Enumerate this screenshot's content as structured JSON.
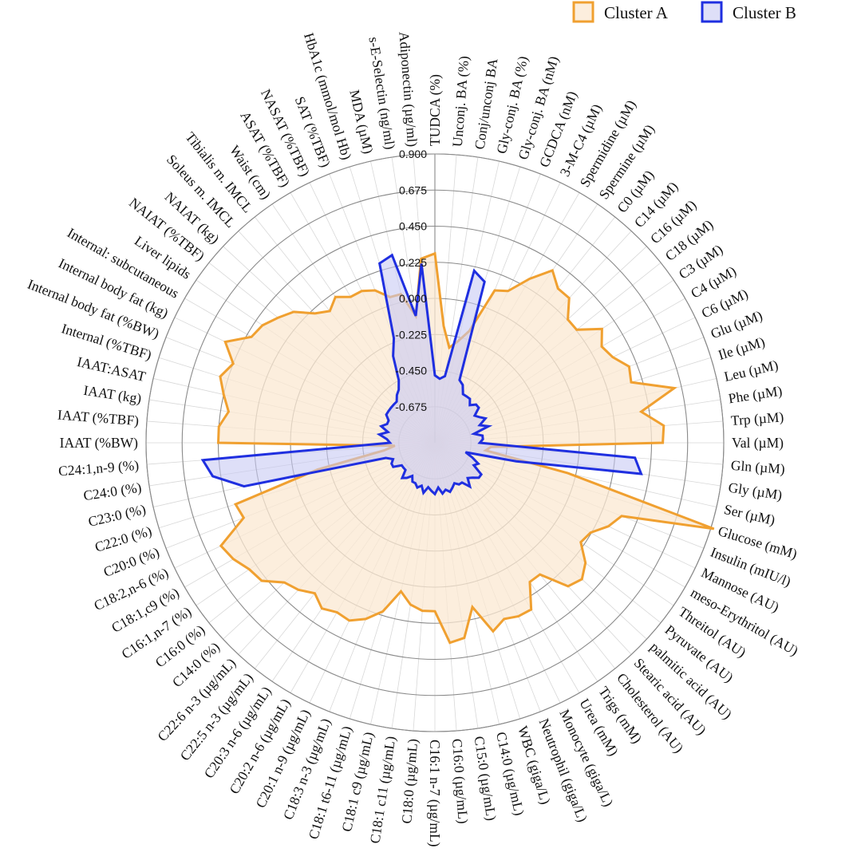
{
  "chart_data": {
    "type": "radar",
    "title": "",
    "range": [
      -0.9,
      0.9
    ],
    "ticks": [
      "0.900",
      "0.675",
      "0.450",
      "0.225",
      "0.000",
      "-0.225",
      "-0.450",
      "-0.675"
    ],
    "tick_values": [
      0.9,
      0.675,
      0.45,
      0.225,
      0.0,
      -0.225,
      -0.45,
      -0.675
    ],
    "grid": true,
    "legend_position": "top-right",
    "categories": [
      "TUDCA (%)",
      "Unconj. BA (%)",
      "Conj/unconj BA",
      "Gly-conj. BA (%)",
      "Gly-conj. BA (nM)",
      "GCDCA (nM)",
      "3-M-C4 (µM)",
      "Spermidine (µM)",
      "Spermine (µM)",
      "C0 (µM)",
      "C14 (µM)",
      "C16 (µM)",
      "C18 (µM)",
      "C3 (µM)",
      "C4 (µM)",
      "C6 (µM)",
      "Glu (µM)",
      "Ile (µM)",
      "Leu (µM)",
      "Phe (µM)",
      "Trp (µM)",
      "Val (µM)",
      "Gln (µM)",
      "Gly (µM)",
      "Ser (µM)",
      "Glucose (mM)",
      "Insulin (mIU/l)",
      "Mannose (AU)",
      "meso-Erythritol (AU)",
      "Threitol (AU)",
      "Pyruvate (AU)",
      "palmitic acid (AU)",
      "Stearic acid (AU)",
      "Cholesterol (AU)",
      "Trigs (mM)",
      "Urea (mM)",
      "Monocyte (giga/L)",
      "Neutrophil (giga/L)",
      "WBC (giga/L)",
      "C14:0 (µg/mL)",
      "C15:0 (µg/mL)",
      "C16:0 (µg/mL)",
      "C16:1 n-7 (µg/mL)",
      "C18:0 (µg/mL)",
      "C18:1 c11 (µg/mL)",
      "C18:1 c9 (µg/mL)",
      "C18:1 t6-11 (µg/mL)",
      "C18:3 n-3 (µg/mL)",
      "C20:1 n-9 (µg/mL)",
      "C20:2 n-6 (µg/mL)",
      "C20:3 n-6 (µg/mL)",
      "C22:5 n-3 (µg/mL)",
      "C22:6 n-3 (µg/mL)",
      "C14:0 (%)",
      "C16:0 (%)",
      "C16:1,n-7 (%)",
      "C18:1,c9 (%)",
      "C18:2,n-6 (%)",
      "C20:0 (%)",
      "C22:0 (%)",
      "C23:0 (%)",
      "C24:0 (%)",
      "C24:1,n-9 (%)",
      "IAAT (%BW)",
      "IAAT (%TBF)",
      "IAAT (kg)",
      "IAAT:ASAT",
      "Internal (%TBF)",
      "Internal body fat (%BW)",
      "Internal body fat (kg)",
      "Internal: subcutaneous",
      "Liver lipids",
      "NAIAT (%TBF)",
      "NAIAT (kg)",
      "Soleus m. IMCL",
      "Tibialis m. IMCL",
      "Waist (cm)",
      "ASAT (%TBF)",
      "NASAT (%TBF)",
      "SAT (%TBF)",
      "HbA1c (mmol/mol Hb)",
      "MDA (µM)",
      "s-E-Selectin (ng/ml)",
      "Adiponectin (µg/ml)"
    ],
    "series": [
      {
        "name": "Cluster A",
        "color": "#f0a030",
        "fill": "#fbe8d2",
        "values": [
          0.28,
          -0.17,
          -0.3,
          -0.25,
          -0.17,
          0.12,
          0.15,
          0.28,
          0.4,
          0.33,
          0.33,
          0.23,
          0.23,
          0.36,
          0.3,
          0.33,
          0.4,
          0.38,
          0.63,
          0.4,
          0.53,
          0.52,
          -0.55,
          -0.58,
          -0.05,
          0.92,
          0.35,
          0.3,
          0.22,
          0.2,
          0.3,
          0.35,
          0.32,
          0.15,
          0.15,
          0.3,
          0.3,
          0.28,
          0.33,
          0.15,
          0.33,
          0.35,
          0.15,
          0.15,
          0.12,
          0.05,
          0.2,
          0.28,
          0.33,
          0.32,
          0.35,
          0.3,
          0.35,
          0.38,
          0.48,
          0.5,
          0.55,
          0.58,
          0.38,
          0.4,
          -0.15,
          -0.58,
          -0.65,
          0.45,
          0.45,
          0.4,
          0.45,
          0.5,
          0.45,
          0.55,
          0.42,
          0.4,
          0.35,
          0.3,
          0.2,
          0.15,
          0.2,
          0.15,
          0.15,
          0.12,
          0.05,
          0.05,
          -0.1,
          0.25
        ]
      },
      {
        "name": "Cluster B",
        "color": "#1f2fe0",
        "fill": "#c8c9f3",
        "values": [
          -0.48,
          -0.5,
          -0.48,
          0.2,
          0.15,
          -0.48,
          -0.5,
          -0.55,
          -0.55,
          -0.55,
          -0.58,
          -0.55,
          -0.55,
          -0.6,
          -0.58,
          -0.55,
          -0.6,
          -0.55,
          -0.65,
          -0.6,
          -0.6,
          -0.62,
          0.35,
          0.4,
          -0.38,
          -0.7,
          -0.65,
          -0.6,
          -0.62,
          -0.55,
          -0.55,
          -0.58,
          -0.6,
          -0.55,
          -0.6,
          -0.6,
          -0.62,
          -0.6,
          -0.58,
          -0.6,
          -0.58,
          -0.62,
          -0.58,
          -0.6,
          -0.62,
          -0.58,
          -0.62,
          -0.6,
          -0.62,
          -0.62,
          -0.65,
          -0.62,
          -0.6,
          -0.65,
          -0.65,
          -0.65,
          -0.6,
          -0.6,
          -0.62,
          -0.58,
          0.32,
          0.5,
          0.55,
          -0.62,
          -0.6,
          -0.55,
          -0.6,
          -0.55,
          -0.58,
          -0.58,
          -0.55,
          -0.55,
          -0.55,
          -0.55,
          -0.55,
          -0.52,
          -0.5,
          -0.45,
          -0.3,
          -0.2,
          0.27,
          0.3,
          -0.1,
          0.22
        ]
      }
    ]
  }
}
